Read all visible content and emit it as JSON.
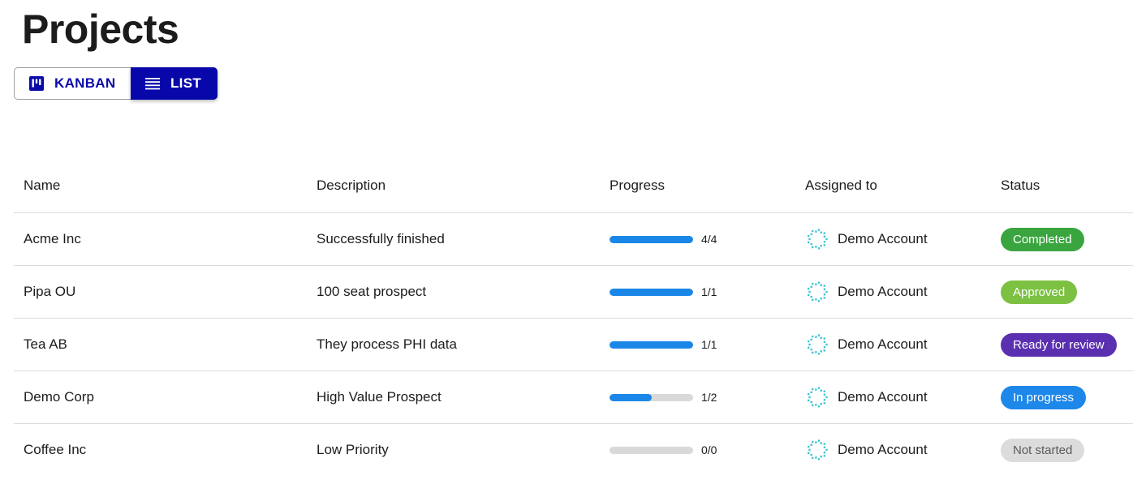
{
  "page": {
    "title": "Projects"
  },
  "view_toggle": {
    "kanban": {
      "label": "KANBAN",
      "icon": "kanban-icon"
    },
    "list": {
      "label": "LIST",
      "icon": "list-icon",
      "active": true
    }
  },
  "table": {
    "headers": {
      "name": "Name",
      "description": "Description",
      "progress": "Progress",
      "assigned_to": "Assigned to",
      "status": "Status"
    },
    "rows": [
      {
        "name": "Acme Inc",
        "description": "Successfully finished",
        "progress_done": 4,
        "progress_total": 4,
        "progress_label": "4/4",
        "assignee": "Demo Account",
        "status": "Completed",
        "status_color": "#3aa53f",
        "status_text_color": "#ffffff"
      },
      {
        "name": "Pipa OU",
        "description": "100 seat prospect",
        "progress_done": 1,
        "progress_total": 1,
        "progress_label": "1/1",
        "assignee": "Demo Account",
        "status": "Approved",
        "status_color": "#7cc142",
        "status_text_color": "#ffffff"
      },
      {
        "name": "Tea AB",
        "description": "They process PHI data",
        "progress_done": 1,
        "progress_total": 1,
        "progress_label": "1/1",
        "assignee": "Demo Account",
        "status": "Ready for review",
        "status_color": "#5a2fb0",
        "status_text_color": "#ffffff"
      },
      {
        "name": "Demo Corp",
        "description": "High Value Prospect",
        "progress_done": 1,
        "progress_total": 2,
        "progress_label": "1/2",
        "assignee": "Demo Account",
        "status": "In progress",
        "status_color": "#1d87ea",
        "status_text_color": "#ffffff"
      },
      {
        "name": "Coffee Inc",
        "description": "Low Priority",
        "progress_done": 0,
        "progress_total": 0,
        "progress_label": "0/0",
        "assignee": "Demo Account",
        "status": "Not started",
        "status_color": "#dcdcdc",
        "status_text_color": "#5a5a5a"
      }
    ]
  },
  "colors": {
    "accent": "#0808aa",
    "progress_fill": "#1a87e8",
    "progress_track": "#d9d9d9",
    "avatar": "#3fc6d6"
  }
}
